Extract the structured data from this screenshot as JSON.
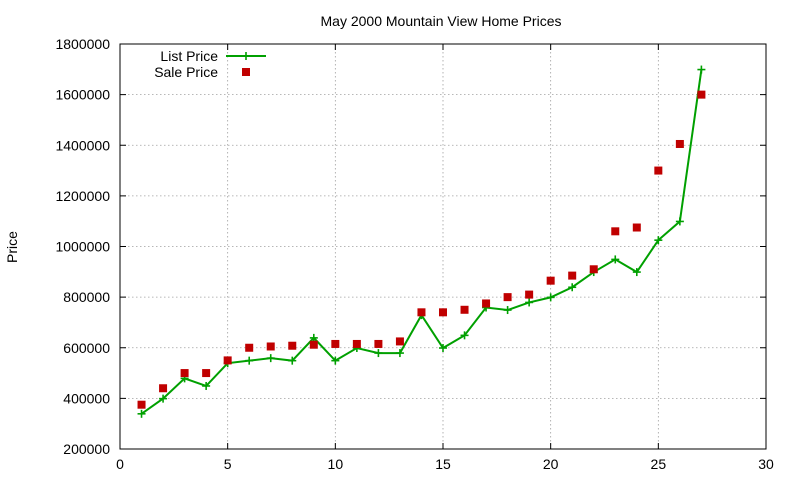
{
  "chart_data": {
    "type": "line",
    "title": "May 2000 Mountain View Home Prices",
    "xlabel": "",
    "ylabel": "Price",
    "xlim": [
      0,
      30
    ],
    "ylim": [
      200000,
      1800000
    ],
    "xticks": [
      0,
      5,
      10,
      15,
      20,
      25,
      30
    ],
    "yticks": [
      200000,
      400000,
      600000,
      800000,
      1000000,
      1200000,
      1400000,
      1600000,
      1800000
    ],
    "grid": true,
    "legend_position": "top-left",
    "series": [
      {
        "name": "List Price",
        "style": "line+cross",
        "color": "#00a000",
        "x": [
          1,
          2,
          3,
          4,
          5,
          6,
          7,
          8,
          9,
          10,
          11,
          12,
          13,
          14,
          15,
          16,
          17,
          18,
          19,
          20,
          21,
          22,
          23,
          24,
          25,
          26,
          27
        ],
        "y": [
          339000,
          399000,
          479000,
          449000,
          539000,
          549000,
          559000,
          549000,
          639000,
          549000,
          599000,
          579000,
          579000,
          729000,
          599000,
          649000,
          759000,
          749000,
          779000,
          799000,
          839000,
          899000,
          949000,
          899000,
          1025000,
          1099000,
          1699000
        ]
      },
      {
        "name": "Sale Price",
        "style": "square",
        "color": "#c00000",
        "x": [
          1,
          2,
          3,
          4,
          5,
          6,
          7,
          8,
          9,
          10,
          11,
          12,
          13,
          14,
          15,
          16,
          17,
          18,
          19,
          20,
          21,
          22,
          23,
          24,
          25,
          26,
          27
        ],
        "y": [
          375000,
          440000,
          500000,
          500000,
          550000,
          600000,
          605000,
          608000,
          612000,
          615000,
          615000,
          615000,
          625000,
          740000,
          740000,
          750000,
          775000,
          800000,
          810000,
          865000,
          885000,
          910000,
          1060000,
          1075000,
          1300000,
          1405000,
          1600000
        ]
      }
    ]
  }
}
